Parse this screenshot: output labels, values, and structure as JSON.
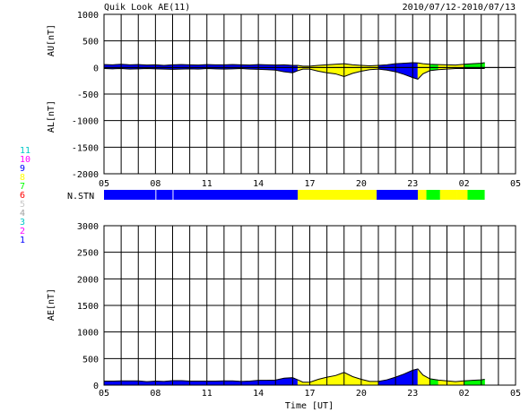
{
  "header": {
    "title": "Quik Look AE(11)",
    "date_range": "2010/07/12-2010/07/13"
  },
  "chart_data": [
    {
      "type": "area",
      "panel": "upper",
      "ylabel_top": "AU[nT]",
      "ylabel_bottom": "AL[nT]",
      "ylim": [
        -2000,
        1000
      ],
      "yticks": [
        1000,
        500,
        0,
        -500,
        -1000,
        -1500,
        -2000
      ],
      "xlim_hours": [
        5,
        29
      ],
      "xtick_labels": [
        "05",
        "08",
        "11",
        "14",
        "17",
        "20",
        "23",
        "02",
        "05"
      ],
      "grid": true,
      "au_series": {
        "name": "AU",
        "x_hours": [
          5,
          5.5,
          6,
          6.5,
          7,
          7.5,
          8,
          8.5,
          9,
          9.5,
          10,
          10.5,
          11,
          11.5,
          12,
          12.5,
          13,
          13.5,
          14,
          14.5,
          15,
          15.5,
          16,
          16.3,
          16.6,
          17,
          17.5,
          18,
          18.5,
          19,
          19.5,
          20,
          20.5,
          21,
          21.5,
          22,
          22.5,
          23,
          23.3,
          23.6,
          24,
          24.5,
          25,
          25.5,
          26,
          26.5,
          27,
          27.2
        ],
        "values": [
          55,
          50,
          60,
          50,
          55,
          45,
          50,
          40,
          50,
          55,
          50,
          45,
          55,
          50,
          50,
          55,
          50,
          45,
          55,
          50,
          45,
          50,
          40,
          40,
          25,
          25,
          40,
          50,
          60,
          70,
          50,
          40,
          30,
          40,
          50,
          70,
          80,
          90,
          85,
          70,
          60,
          55,
          50,
          45,
          60,
          70,
          80,
          90
        ]
      },
      "al_series": {
        "name": "AL",
        "x_hours": [
          5,
          5.5,
          6,
          6.5,
          7,
          7.5,
          8,
          8.5,
          9,
          9.5,
          10,
          10.5,
          11,
          11.5,
          12,
          12.5,
          13,
          13.5,
          14,
          14.5,
          15,
          15.5,
          16,
          16.3,
          16.6,
          17,
          17.5,
          18,
          18.5,
          19,
          19.5,
          20,
          20.5,
          21,
          21.5,
          22,
          22.5,
          23,
          23.3,
          23.6,
          24,
          24.5,
          25,
          25.5,
          26,
          26.5,
          27,
          27.2
        ],
        "values": [
          -20,
          -25,
          -20,
          -30,
          -25,
          -20,
          -25,
          -30,
          -35,
          -30,
          -25,
          -30,
          -20,
          -25,
          -30,
          -25,
          -20,
          -30,
          -35,
          -40,
          -50,
          -80,
          -100,
          -60,
          -30,
          -30,
          -70,
          -100,
          -120,
          -170,
          -110,
          -70,
          -40,
          -30,
          -50,
          -80,
          -130,
          -190,
          -220,
          -120,
          -60,
          -40,
          -30,
          -20,
          -20,
          -20,
          -20,
          -20
        ]
      },
      "activity_segments": [
        {
          "start": 5,
          "end": 16.3,
          "color": "#0000ff"
        },
        {
          "start": 16.3,
          "end": 20.9,
          "color": "#ffff00"
        },
        {
          "start": 20.9,
          "end": 23.3,
          "color": "#0000ff"
        },
        {
          "start": 23.3,
          "end": 23.8,
          "color": "#ffff00"
        },
        {
          "start": 23.8,
          "end": 24.6,
          "color": "#00ff00"
        },
        {
          "start": 24.6,
          "end": 25.5,
          "color": "#ffff00"
        },
        {
          "start": 25.5,
          "end": 26.2,
          "color": "#ffff00"
        },
        {
          "start": 26.2,
          "end": 27.2,
          "color": "#00ff00"
        }
      ]
    },
    {
      "type": "bar",
      "panel": "station-strip",
      "label": "N.STN",
      "xlim_hours": [
        5,
        29
      ],
      "segments": [
        {
          "start": 5,
          "end": 8,
          "color": "#0000ff"
        },
        {
          "start": 8.05,
          "end": 9,
          "color": "#0000ff"
        },
        {
          "start": 9.05,
          "end": 16.3,
          "color": "#0000ff"
        },
        {
          "start": 16.3,
          "end": 20.9,
          "color": "#ffff00"
        },
        {
          "start": 20.9,
          "end": 23.3,
          "color": "#0000ff"
        },
        {
          "start": 23.3,
          "end": 23.8,
          "color": "#ffff00"
        },
        {
          "start": 23.8,
          "end": 24.6,
          "color": "#00ff00"
        },
        {
          "start": 24.6,
          "end": 25.6,
          "color": "#ffff00"
        },
        {
          "start": 25.6,
          "end": 26.2,
          "color": "#ffff00"
        },
        {
          "start": 26.2,
          "end": 27.2,
          "color": "#00ff00"
        }
      ],
      "station_scale": [
        {
          "label": "11",
          "color": "#00c8c8"
        },
        {
          "label": "10",
          "color": "#ff00ff"
        },
        {
          "label": "9",
          "color": "#0000ff"
        },
        {
          "label": "8",
          "color": "#ffff00"
        },
        {
          "label": "7",
          "color": "#00ff00"
        },
        {
          "label": "6",
          "color": "#ff0000"
        },
        {
          "label": "5",
          "color": "#c8c8c8"
        },
        {
          "label": "4",
          "color": "#a0a0a0"
        },
        {
          "label": "3",
          "color": "#00c8c8"
        },
        {
          "label": "2",
          "color": "#ff00ff"
        },
        {
          "label": "1",
          "color": "#0000ff"
        }
      ]
    },
    {
      "type": "area",
      "panel": "lower",
      "ylabel": "AE[nT]",
      "xlabel": "Time [UT]",
      "ylim": [
        0,
        3000
      ],
      "yticks": [
        3000,
        2500,
        2000,
        1500,
        1000,
        500,
        0
      ],
      "xlim_hours": [
        5,
        29
      ],
      "xtick_labels": [
        "05",
        "08",
        "11",
        "14",
        "17",
        "20",
        "23",
        "02",
        "05"
      ],
      "grid": true,
      "ae_series": {
        "name": "AE",
        "x_hours": [
          5,
          5.5,
          6,
          6.5,
          7,
          7.5,
          8,
          8.5,
          9,
          9.5,
          10,
          10.5,
          11,
          11.5,
          12,
          12.5,
          13,
          13.5,
          14,
          14.5,
          15,
          15.5,
          16,
          16.3,
          16.6,
          17,
          17.5,
          18,
          18.5,
          19,
          19.5,
          20,
          20.5,
          21,
          21.5,
          22,
          22.5,
          23,
          23.3,
          23.6,
          24,
          24.5,
          25,
          25.5,
          26,
          26.5,
          27,
          27.2
        ],
        "values": [
          75,
          75,
          80,
          80,
          80,
          65,
          75,
          70,
          85,
          85,
          75,
          75,
          75,
          75,
          80,
          80,
          70,
          75,
          90,
          90,
          95,
          130,
          140,
          100,
          55,
          55,
          110,
          150,
          180,
          240,
          160,
          110,
          70,
          70,
          100,
          150,
          210,
          280,
          305,
          190,
          120,
          95,
          80,
          65,
          80,
          90,
          100,
          110
        ]
      }
    }
  ]
}
